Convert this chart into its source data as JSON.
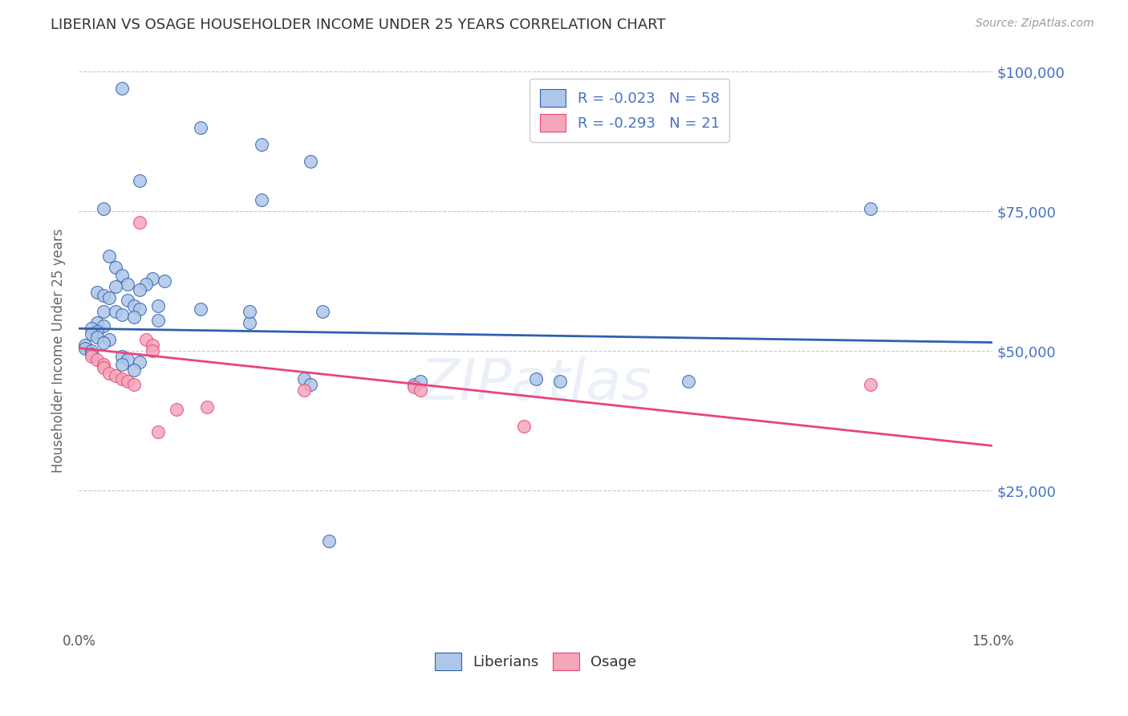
{
  "title": "LIBERIAN VS OSAGE HOUSEHOLDER INCOME UNDER 25 YEARS CORRELATION CHART",
  "source": "Source: ZipAtlas.com",
  "ylabel_label": "Householder Income Under 25 years",
  "xlim": [
    0.0,
    0.15
  ],
  "ylim": [
    0,
    100000
  ],
  "watermark": "ZIPatlas",
  "legend_r_liberian": "R = -0.023",
  "legend_n_liberian": "N = 58",
  "legend_r_osage": "R = -0.293",
  "legend_n_osage": "N = 21",
  "liberian_color": "#aec6e8",
  "osage_color": "#f4a7b9",
  "liberian_line_color": "#3060b0",
  "osage_line_color": "#e8457a",
  "background_color": "#ffffff",
  "grid_color": "#bbbbbb",
  "title_color": "#333333",
  "axis_label_color": "#666666",
  "right_tick_color": "#4472c4",
  "liberian_points": [
    [
      0.007,
      97000
    ],
    [
      0.02,
      90000
    ],
    [
      0.03,
      87000
    ],
    [
      0.038,
      84000
    ],
    [
      0.01,
      80500
    ],
    [
      0.03,
      77000
    ],
    [
      0.004,
      75500
    ],
    [
      0.005,
      67000
    ],
    [
      0.006,
      65000
    ],
    [
      0.007,
      63500
    ],
    [
      0.012,
      63000
    ],
    [
      0.014,
      62500
    ],
    [
      0.011,
      62000
    ],
    [
      0.008,
      62000
    ],
    [
      0.006,
      61500
    ],
    [
      0.01,
      61000
    ],
    [
      0.003,
      60500
    ],
    [
      0.004,
      60000
    ],
    [
      0.005,
      59500
    ],
    [
      0.008,
      59000
    ],
    [
      0.009,
      58000
    ],
    [
      0.013,
      58000
    ],
    [
      0.01,
      57500
    ],
    [
      0.004,
      57000
    ],
    [
      0.006,
      57000
    ],
    [
      0.007,
      56500
    ],
    [
      0.009,
      56000
    ],
    [
      0.013,
      55500
    ],
    [
      0.003,
      55000
    ],
    [
      0.004,
      54500
    ],
    [
      0.002,
      54000
    ],
    [
      0.003,
      53500
    ],
    [
      0.002,
      53000
    ],
    [
      0.003,
      52500
    ],
    [
      0.005,
      52000
    ],
    [
      0.004,
      51500
    ],
    [
      0.001,
      51000
    ],
    [
      0.001,
      50500
    ],
    [
      0.002,
      50000
    ],
    [
      0.002,
      49500
    ],
    [
      0.007,
      49000
    ],
    [
      0.008,
      48500
    ],
    [
      0.01,
      48000
    ],
    [
      0.007,
      47500
    ],
    [
      0.009,
      46500
    ],
    [
      0.02,
      57500
    ],
    [
      0.028,
      55000
    ],
    [
      0.028,
      57000
    ],
    [
      0.037,
      45000
    ],
    [
      0.038,
      44000
    ],
    [
      0.04,
      57000
    ],
    [
      0.055,
      44000
    ],
    [
      0.056,
      44500
    ],
    [
      0.075,
      45000
    ],
    [
      0.079,
      44500
    ],
    [
      0.041,
      16000
    ],
    [
      0.1,
      44500
    ],
    [
      0.13,
      75500
    ]
  ],
  "osage_points": [
    [
      0.002,
      49000
    ],
    [
      0.003,
      48500
    ],
    [
      0.004,
      47500
    ],
    [
      0.004,
      47000
    ],
    [
      0.005,
      46000
    ],
    [
      0.006,
      45500
    ],
    [
      0.007,
      45000
    ],
    [
      0.008,
      44500
    ],
    [
      0.009,
      44000
    ],
    [
      0.01,
      73000
    ],
    [
      0.011,
      52000
    ],
    [
      0.012,
      51000
    ],
    [
      0.012,
      50000
    ],
    [
      0.013,
      35500
    ],
    [
      0.016,
      39500
    ],
    [
      0.021,
      40000
    ],
    [
      0.037,
      43000
    ],
    [
      0.055,
      43500
    ],
    [
      0.056,
      43000
    ],
    [
      0.073,
      36500
    ],
    [
      0.13,
      44000
    ]
  ],
  "liberian_trendline_x": [
    0.0,
    0.15
  ],
  "liberian_trendline_y": [
    54000,
    51500
  ],
  "osage_trendline_x": [
    0.0,
    0.15
  ],
  "osage_trendline_y": [
    50500,
    33000
  ]
}
